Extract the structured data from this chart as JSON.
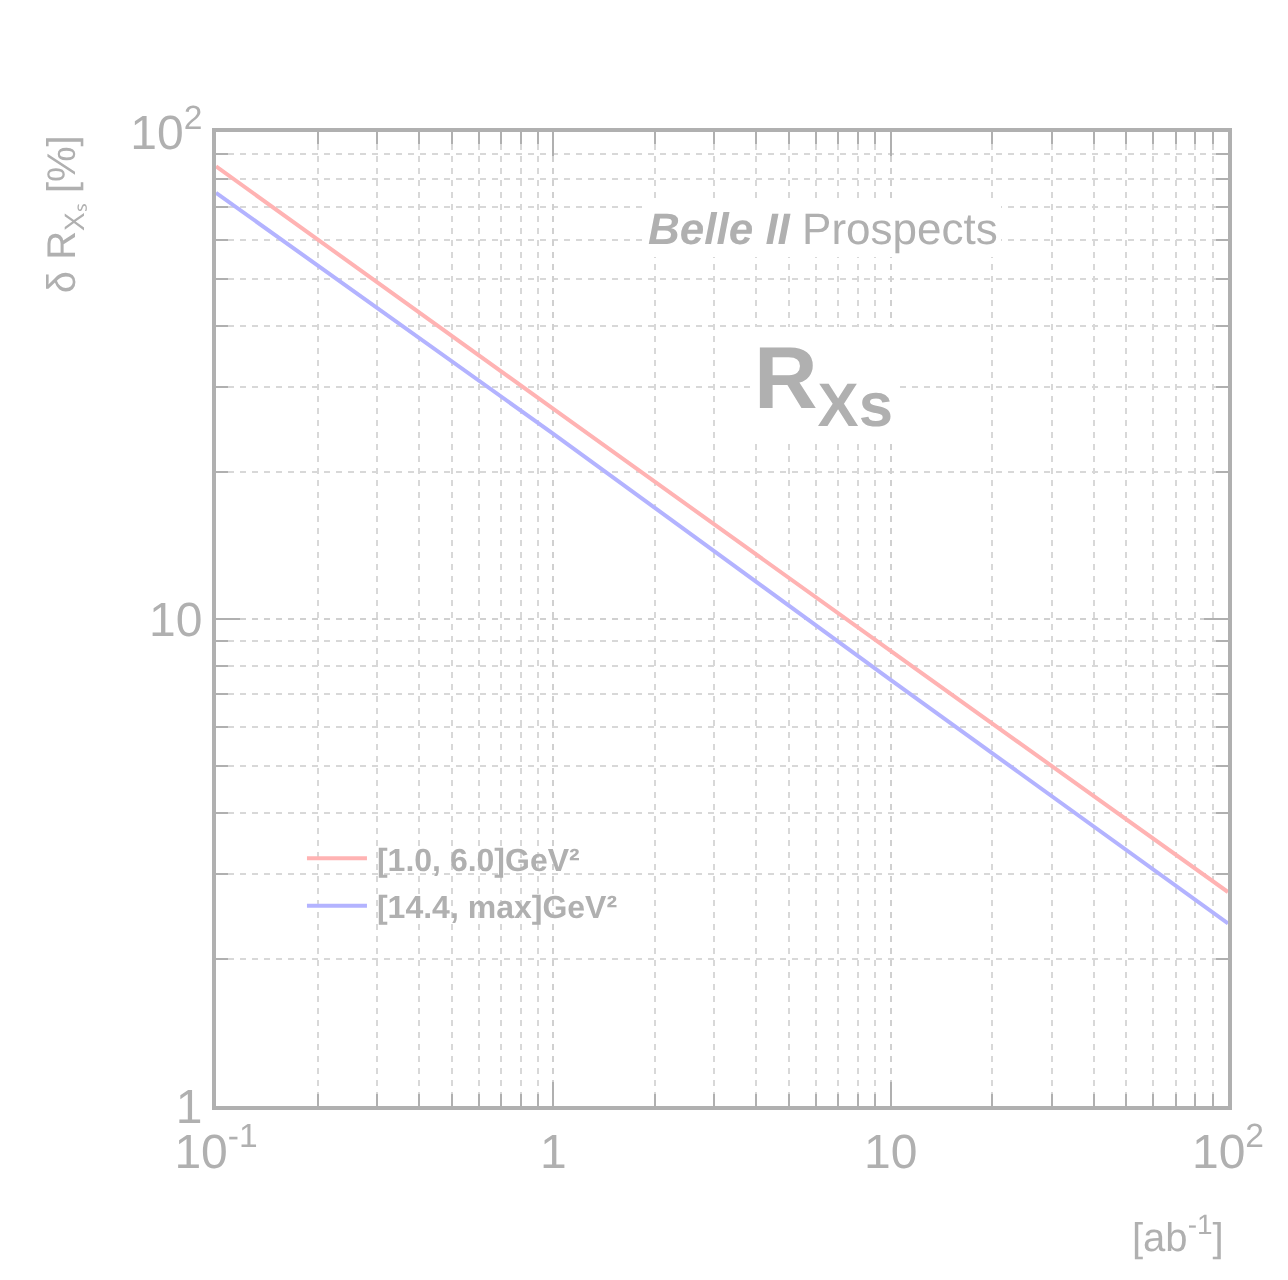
{
  "chart_data": {
    "type": "line",
    "xlabel": "[ab$^{-1}$]",
    "ylabel": "δ R$_{Xₛ}$ [%]",
    "annotations": [
      "Belle II Prospects",
      "R$_{Xs}$"
    ],
    "x": [
      0.1,
      1,
      10,
      100
    ],
    "series": [
      {
        "name": "[1.0, 6.0]GeV²",
        "color": "#ffb3b3",
        "values": [
          85,
          27,
          8.6,
          2.75
        ]
      },
      {
        "name": "[14.4, max]GeV²",
        "color": "#b3b3ff",
        "values": [
          75,
          24,
          7.5,
          2.37
        ]
      }
    ],
    "log": "xy",
    "xlim": [
      0.1,
      100
    ],
    "ylim": [
      1,
      100
    ],
    "xticks": [
      {
        "value": 0.1,
        "label": "10$^{-1}$"
      },
      1,
      10,
      {
        "value": 100,
        "label": "10$^{2}$"
      }
    ],
    "yticks": [
      1,
      10,
      {
        "value": 100,
        "label": "10$^{2}$"
      }
    ],
    "grid": true,
    "legend": "bottom left",
    "line_style": "solid",
    "marker": "none"
  }
}
